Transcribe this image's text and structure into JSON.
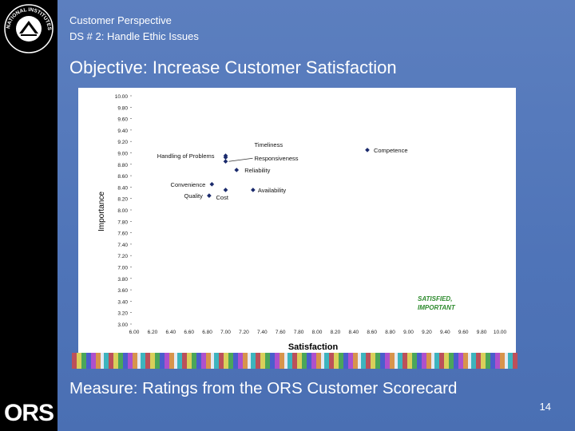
{
  "slide": {
    "breadcrumb_line1": "Customer Perspective",
    "breadcrumb_line2": "DS # 2: Handle Ethic Issues",
    "title": "Objective: Increase Customer Satisfaction",
    "footer": "Measure: Ratings from the ORS Customer Scorecard",
    "page_number": "14",
    "logo_top_text": "NATIONAL INSTITUTES OF HEALTH",
    "logo_bottom_text": "ORS"
  },
  "colors": {
    "background": "#4f74b8",
    "sidebar": "#000000",
    "quadrant_label": "#2e8b2e",
    "point": "#1a2a6c"
  },
  "chart_data": {
    "type": "scatter",
    "xlabel": "Satisfaction",
    "ylabel": "Importance",
    "xlim": [
      6.0,
      10.0
    ],
    "ylim": [
      3.0,
      10.0
    ],
    "x_ticks": [
      "6.00",
      "6.20",
      "6.40",
      "6.60",
      "6.80",
      "7.00",
      "7.20",
      "7.40",
      "7.60",
      "7.80",
      "8.00",
      "8.20",
      "8.40",
      "8.60",
      "8.80",
      "9.00",
      "9.20",
      "9.40",
      "9.60",
      "9.80",
      "10.00"
    ],
    "y_ticks": [
      "3.00",
      "3.20",
      "3.40",
      "3.60",
      "3.80",
      "7.00",
      "7.20",
      "7.40",
      "7.60",
      "7.80",
      "8.00",
      "8.20",
      "8.40",
      "8.60",
      "8.80",
      "9.00",
      "9.20",
      "9.40",
      "9.60",
      "9.80",
      "10.00"
    ],
    "quadrant_label_line1": "SATISFIED,",
    "quadrant_label_line2": "IMPORTANT",
    "points": [
      {
        "label": "Competence",
        "x": 8.55,
        "y": 9.05
      },
      {
        "label": "Timeliness",
        "x": 7.0,
        "y": 8.95
      },
      {
        "label": "Responsiveness",
        "x": 7.0,
        "y": 8.85
      },
      {
        "label": "Handling of Problems",
        "x": 7.0,
        "y": 8.92
      },
      {
        "label": "Reliability",
        "x": 7.12,
        "y": 8.7
      },
      {
        "label": "Convenience",
        "x": 6.85,
        "y": 8.45
      },
      {
        "label": "Cost",
        "x": 7.0,
        "y": 8.35
      },
      {
        "label": "Availability",
        "x": 7.3,
        "y": 8.35
      },
      {
        "label": "Quality",
        "x": 6.82,
        "y": 8.25
      }
    ]
  }
}
